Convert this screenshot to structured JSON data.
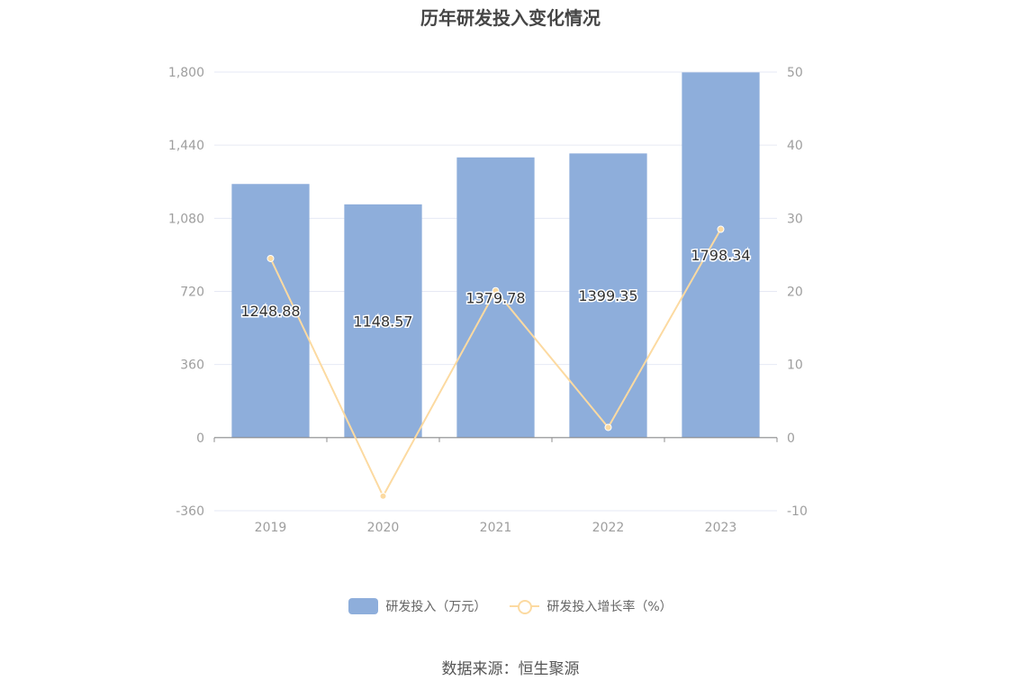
{
  "chart_data": {
    "type": "bar",
    "title": "历年研发投入变化情况",
    "categories": [
      "2019",
      "2020",
      "2021",
      "2022",
      "2023"
    ],
    "series": [
      {
        "name": "研发投入（万元）",
        "type": "bar",
        "axis": "left",
        "values": [
          1248.88,
          1148.57,
          1379.78,
          1399.35,
          1798.34
        ],
        "labels": [
          "1248.88",
          "1148.57",
          "1379.78",
          "1399.35",
          "1798.34"
        ],
        "color": "#8eaedb"
      },
      {
        "name": "研发投入增长率（%）",
        "type": "line",
        "axis": "right",
        "values": [
          24.5,
          -8.0,
          20.1,
          1.4,
          28.5
        ],
        "color": "#fcdaa1"
      }
    ],
    "y_left": {
      "ticks": [
        "1,800",
        "1,440",
        "1,080",
        "720",
        "360",
        "0",
        "-360"
      ],
      "ylim": [
        -360,
        1800
      ]
    },
    "y_right": {
      "ticks": [
        "50",
        "40",
        "30",
        "20",
        "10",
        "0",
        "-10"
      ],
      "ylim": [
        -10,
        50
      ]
    },
    "grid": true,
    "legend_position": "bottom-center"
  },
  "source": "数据来源：恒生聚源",
  "colors": {
    "grid": "#e6e9f4",
    "axis_text": "#9e9e9e",
    "title": "#464646"
  }
}
